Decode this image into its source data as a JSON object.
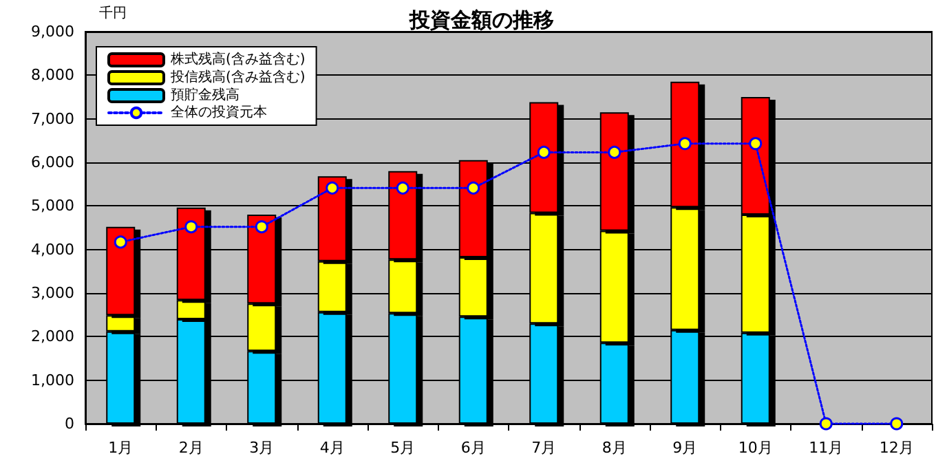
{
  "chart_data": {
    "type": "bar",
    "title": "投資金額の推移",
    "ylabel": "千円",
    "categories": [
      "1月",
      "2月",
      "3月",
      "4月",
      "5月",
      "6月",
      "7月",
      "8月",
      "9月",
      "10月",
      "11月",
      "12月"
    ],
    "stacked": true,
    "series": [
      {
        "name": "預貯金残高",
        "color": "#00ccff",
        "values": [
          2120,
          2400,
          1670,
          2560,
          2540,
          2460,
          2300,
          1860,
          2150,
          2090,
          null,
          null
        ]
      },
      {
        "name": "投信残高(含み益含む)",
        "color": "#ffff00",
        "values": [
          370,
          440,
          1090,
          1170,
          1230,
          1360,
          2540,
          2570,
          2820,
          2710,
          null,
          null
        ]
      },
      {
        "name": "株式残高(含み益含む)",
        "color": "#ff0000",
        "values": [
          2030,
          2120,
          2040,
          1950,
          2030,
          2230,
          2540,
          2720,
          2880,
          2700,
          null,
          null
        ]
      },
      {
        "name": "全体の投資元本",
        "type": "line",
        "color": "#0000ff",
        "marker": "circle",
        "line_style": "dotted",
        "values": [
          4170,
          4520,
          4520,
          5410,
          5410,
          5410,
          6230,
          6230,
          6430,
          6430,
          0,
          0
        ]
      }
    ],
    "ylim": [
      0,
      9000
    ],
    "yticks": [
      0,
      {
        "value": 1000,
        "label": "1,000"
      },
      {
        "value": 2000,
        "label": "2,000"
      },
      {
        "value": 3000,
        "label": "3,000"
      },
      {
        "value": 4000,
        "label": "4,000"
      },
      {
        "value": 5000,
        "label": "5,000"
      },
      {
        "value": 6000,
        "label": "6,000"
      },
      {
        "value": 7000,
        "label": "7,000"
      },
      {
        "value": 8000,
        "label": "8,000"
      },
      {
        "value": 9000,
        "label": "9,000"
      }
    ],
    "grid": "y",
    "legend": "top left"
  }
}
